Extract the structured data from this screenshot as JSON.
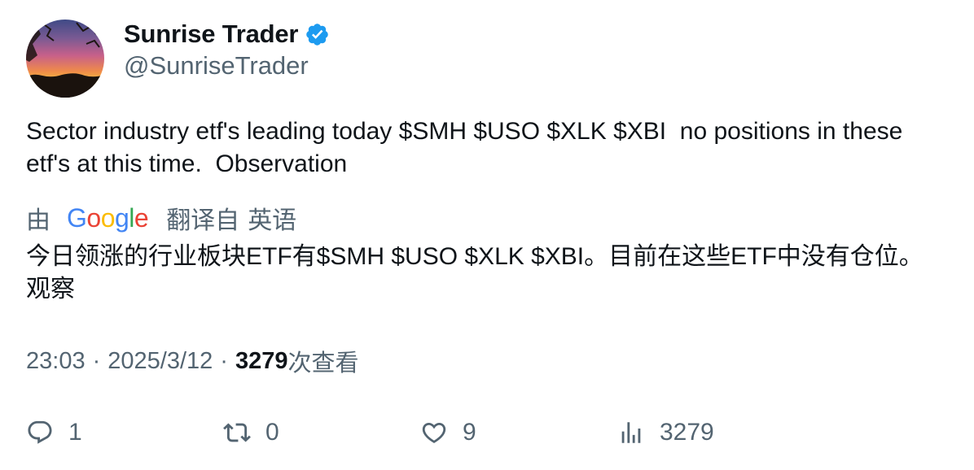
{
  "author": {
    "display_name": "Sunrise Trader",
    "handle": "@SunriseTrader",
    "verified": true,
    "verified_color": "#1d9bf0"
  },
  "tweet": {
    "text": "Sector industry etf's leading today $SMH $USO $XLK $XBI  no positions in these etf's at this time.  Observation"
  },
  "translation": {
    "prefix": "由",
    "provider": "Google",
    "suffix_1": "翻译自",
    "suffix_2": "英语",
    "text": "今日领涨的行业板块ETF有$SMH $USO $XLK $XBI。目前在这些ETF中没有仓位。观察"
  },
  "meta": {
    "time": "23:03",
    "separator": "·",
    "date": "2025/3/12",
    "views_count": "3279",
    "views_label": "次查看"
  },
  "actions": {
    "reply_count": "1",
    "retweet_count": "0",
    "like_count": "9",
    "views_count": "3279"
  },
  "icons": {
    "reply": "reply-icon",
    "retweet": "retweet-icon",
    "like": "heart-icon",
    "views": "views-chart-icon"
  }
}
